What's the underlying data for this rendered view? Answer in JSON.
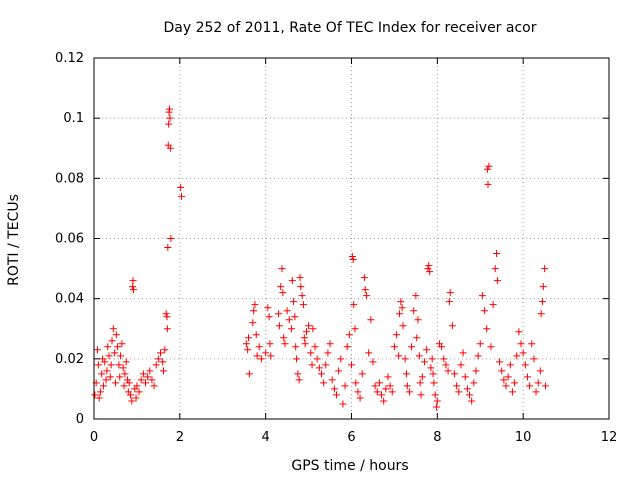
{
  "chart_data": {
    "type": "scatter",
    "title": "Day 252 of 2011, Rate Of TEC Index for receiver acor",
    "xlabel": "GPS time / hours",
    "ylabel": "ROTI / TECUs",
    "xlim": [
      0,
      12
    ],
    "ylim": [
      0,
      0.12
    ],
    "x_ticks": [
      "0",
      "2",
      "4",
      "6",
      "8",
      "10",
      "12"
    ],
    "y_ticks": [
      "0",
      "0.02",
      "0.04",
      "0.06",
      "0.08",
      "0.1",
      "0.12"
    ],
    "grid": true,
    "marker": "plus",
    "series": [
      {
        "name": "ROTI",
        "color": "#ff0000",
        "points": [
          [
            0.02,
            0.008
          ],
          [
            0.05,
            0.012
          ],
          [
            0.08,
            0.023
          ],
          [
            0.1,
            0.018
          ],
          [
            0.12,
            0.007
          ],
          [
            0.15,
            0.009
          ],
          [
            0.18,
            0.015
          ],
          [
            0.2,
            0.02
          ],
          [
            0.22,
            0.011
          ],
          [
            0.25,
            0.019
          ],
          [
            0.28,
            0.013
          ],
          [
            0.3,
            0.016
          ],
          [
            0.32,
            0.024
          ],
          [
            0.35,
            0.021
          ],
          [
            0.38,
            0.014
          ],
          [
            0.4,
            0.018
          ],
          [
            0.42,
            0.026
          ],
          [
            0.45,
            0.03
          ],
          [
            0.48,
            0.022
          ],
          [
            0.5,
            0.012
          ],
          [
            0.52,
            0.028
          ],
          [
            0.55,
            0.024
          ],
          [
            0.58,
            0.018
          ],
          [
            0.6,
            0.014
          ],
          [
            0.62,
            0.021
          ],
          [
            0.65,
            0.025
          ],
          [
            0.68,
            0.017
          ],
          [
            0.7,
            0.011
          ],
          [
            0.72,
            0.015
          ],
          [
            0.75,
            0.019
          ],
          [
            0.78,
            0.013
          ],
          [
            0.8,
            0.009
          ],
          [
            0.82,
            0.012
          ],
          [
            0.85,
            0.008
          ],
          [
            0.88,
            0.006
          ],
          [
            0.9,
            0.044
          ],
          [
            0.91,
            0.046
          ],
          [
            0.92,
            0.043
          ],
          [
            0.95,
            0.01
          ],
          [
            0.98,
            0.007
          ],
          [
            1.0,
            0.011
          ],
          [
            1.05,
            0.009
          ],
          [
            1.1,
            0.013
          ],
          [
            1.15,
            0.015
          ],
          [
            1.2,
            0.012
          ],
          [
            1.25,
            0.014
          ],
          [
            1.3,
            0.016
          ],
          [
            1.35,
            0.013
          ],
          [
            1.4,
            0.011
          ],
          [
            1.45,
            0.018
          ],
          [
            1.5,
            0.02
          ],
          [
            1.55,
            0.022
          ],
          [
            1.6,
            0.019
          ],
          [
            1.62,
            0.016
          ],
          [
            1.65,
            0.023
          ],
          [
            1.68,
            0.035
          ],
          [
            1.7,
            0.034
          ],
          [
            1.71,
            0.03
          ],
          [
            1.72,
            0.057
          ],
          [
            1.73,
            0.091
          ],
          [
            1.74,
            0.098
          ],
          [
            1.75,
            0.102
          ],
          [
            1.76,
            0.103
          ],
          [
            1.77,
            0.1
          ],
          [
            1.78,
            0.09
          ],
          [
            1.79,
            0.06
          ],
          [
            2.02,
            0.077
          ],
          [
            2.04,
            0.074
          ],
          [
            3.55,
            0.025
          ],
          [
            3.58,
            0.023
          ],
          [
            3.6,
            0.027
          ],
          [
            3.62,
            0.015
          ],
          [
            3.7,
            0.032
          ],
          [
            3.72,
            0.036
          ],
          [
            3.75,
            0.038
          ],
          [
            3.78,
            0.028
          ],
          [
            3.8,
            0.021
          ],
          [
            3.85,
            0.024
          ],
          [
            3.9,
            0.02
          ],
          [
            4.0,
            0.022
          ],
          [
            4.05,
            0.037
          ],
          [
            4.08,
            0.034
          ],
          [
            4.1,
            0.025
          ],
          [
            4.12,
            0.021
          ],
          [
            4.3,
            0.035
          ],
          [
            4.32,
            0.031
          ],
          [
            4.35,
            0.044
          ],
          [
            4.38,
            0.05
          ],
          [
            4.4,
            0.042
          ],
          [
            4.42,
            0.027
          ],
          [
            4.45,
            0.025
          ],
          [
            4.5,
            0.036
          ],
          [
            4.55,
            0.033
          ],
          [
            4.6,
            0.03
          ],
          [
            4.62,
            0.046
          ],
          [
            4.65,
            0.039
          ],
          [
            4.68,
            0.034
          ],
          [
            4.7,
            0.024
          ],
          [
            4.72,
            0.02
          ],
          [
            4.75,
            0.015
          ],
          [
            4.78,
            0.013
          ],
          [
            4.8,
            0.047
          ],
          [
            4.82,
            0.044
          ],
          [
            4.85,
            0.041
          ],
          [
            4.88,
            0.038
          ],
          [
            4.9,
            0.027
          ],
          [
            4.92,
            0.025
          ],
          [
            4.95,
            0.029
          ],
          [
            5.0,
            0.031
          ],
          [
            5.05,
            0.022
          ],
          [
            5.08,
            0.018
          ],
          [
            5.1,
            0.03
          ],
          [
            5.15,
            0.024
          ],
          [
            5.2,
            0.02
          ],
          [
            5.25,
            0.017
          ],
          [
            5.3,
            0.015
          ],
          [
            5.35,
            0.012
          ],
          [
            5.4,
            0.018
          ],
          [
            5.45,
            0.022
          ],
          [
            5.5,
            0.025
          ],
          [
            5.55,
            0.013
          ],
          [
            5.6,
            0.01
          ],
          [
            5.65,
            0.008
          ],
          [
            5.7,
            0.016
          ],
          [
            5.75,
            0.02
          ],
          [
            5.8,
            0.005
          ],
          [
            5.85,
            0.011
          ],
          [
            5.9,
            0.024
          ],
          [
            5.95,
            0.028
          ],
          [
            6.0,
            0.018
          ],
          [
            6.02,
            0.054
          ],
          [
            6.04,
            0.053
          ],
          [
            6.05,
            0.038
          ],
          [
            6.08,
            0.03
          ],
          [
            6.1,
            0.012
          ],
          [
            6.15,
            0.009
          ],
          [
            6.2,
            0.007
          ],
          [
            6.25,
            0.015
          ],
          [
            6.3,
            0.047
          ],
          [
            6.32,
            0.043
          ],
          [
            6.35,
            0.041
          ],
          [
            6.4,
            0.022
          ],
          [
            6.45,
            0.033
          ],
          [
            6.5,
            0.019
          ],
          [
            6.55,
            0.011
          ],
          [
            6.6,
            0.009
          ],
          [
            6.65,
            0.012
          ],
          [
            6.7,
            0.008
          ],
          [
            6.75,
            0.006
          ],
          [
            6.8,
            0.01
          ],
          [
            6.85,
            0.014
          ],
          [
            6.9,
            0.011
          ],
          [
            6.95,
            0.009
          ],
          [
            7.0,
            0.024
          ],
          [
            7.05,
            0.028
          ],
          [
            7.1,
            0.021
          ],
          [
            7.12,
            0.035
          ],
          [
            7.15,
            0.039
          ],
          [
            7.18,
            0.037
          ],
          [
            7.2,
            0.031
          ],
          [
            7.25,
            0.02
          ],
          [
            7.28,
            0.015
          ],
          [
            7.3,
            0.011
          ],
          [
            7.35,
            0.009
          ],
          [
            7.4,
            0.024
          ],
          [
            7.45,
            0.036
          ],
          [
            7.5,
            0.041
          ],
          [
            7.52,
            0.027
          ],
          [
            7.55,
            0.033
          ],
          [
            7.58,
            0.021
          ],
          [
            7.6,
            0.012
          ],
          [
            7.62,
            0.008
          ],
          [
            7.65,
            0.014
          ],
          [
            7.7,
            0.019
          ],
          [
            7.75,
            0.023
          ],
          [
            7.78,
            0.05
          ],
          [
            7.8,
            0.051
          ],
          [
            7.82,
            0.049
          ],
          [
            7.85,
            0.017
          ],
          [
            7.88,
            0.02
          ],
          [
            7.9,
            0.015
          ],
          [
            7.92,
            0.012
          ],
          [
            7.95,
            0.008
          ],
          [
            7.98,
            0.004
          ],
          [
            8.0,
            0.006
          ],
          [
            8.05,
            0.025
          ],
          [
            8.1,
            0.024
          ],
          [
            8.15,
            0.02
          ],
          [
            8.2,
            0.018
          ],
          [
            8.25,
            0.016
          ],
          [
            8.28,
            0.039
          ],
          [
            8.3,
            0.042
          ],
          [
            8.35,
            0.031
          ],
          [
            8.4,
            0.015
          ],
          [
            8.45,
            0.011
          ],
          [
            8.5,
            0.009
          ],
          [
            8.55,
            0.018
          ],
          [
            8.6,
            0.022
          ],
          [
            8.65,
            0.014
          ],
          [
            8.7,
            0.01
          ],
          [
            8.75,
            0.008
          ],
          [
            8.8,
            0.006
          ],
          [
            8.85,
            0.012
          ],
          [
            8.9,
            0.016
          ],
          [
            8.95,
            0.021
          ],
          [
            9.0,
            0.025
          ],
          [
            9.05,
            0.041
          ],
          [
            9.1,
            0.036
          ],
          [
            9.15,
            0.03
          ],
          [
            9.17,
            0.083
          ],
          [
            9.18,
            0.078
          ],
          [
            9.2,
            0.084
          ],
          [
            9.25,
            0.024
          ],
          [
            9.3,
            0.038
          ],
          [
            9.35,
            0.05
          ],
          [
            9.38,
            0.055
          ],
          [
            9.4,
            0.046
          ],
          [
            9.45,
            0.019
          ],
          [
            9.5,
            0.016
          ],
          [
            9.55,
            0.013
          ],
          [
            9.6,
            0.011
          ],
          [
            9.65,
            0.014
          ],
          [
            9.7,
            0.018
          ],
          [
            9.75,
            0.009
          ],
          [
            9.8,
            0.012
          ],
          [
            9.85,
            0.021
          ],
          [
            9.9,
            0.029
          ],
          [
            9.95,
            0.025
          ],
          [
            10.0,
            0.022
          ],
          [
            10.05,
            0.018
          ],
          [
            10.1,
            0.014
          ],
          [
            10.15,
            0.011
          ],
          [
            10.2,
            0.025
          ],
          [
            10.25,
            0.02
          ],
          [
            10.3,
            0.009
          ],
          [
            10.35,
            0.012
          ],
          [
            10.4,
            0.016
          ],
          [
            10.42,
            0.035
          ],
          [
            10.45,
            0.039
          ],
          [
            10.47,
            0.044
          ],
          [
            10.5,
            0.05
          ],
          [
            10.52,
            0.011
          ]
        ]
      }
    ]
  }
}
